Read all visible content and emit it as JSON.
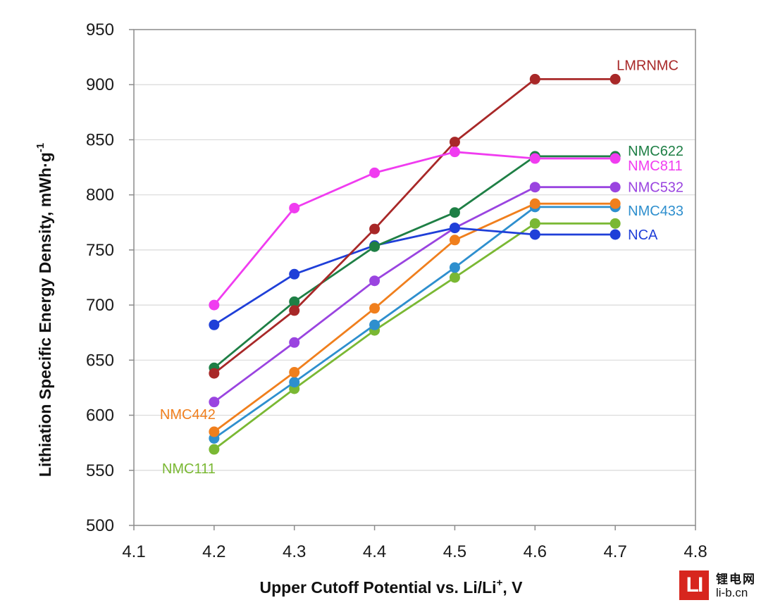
{
  "chart_data": {
    "type": "line",
    "title": "",
    "xlabel_main": "Upper Cutoff Potential vs. Li/Li",
    "xlabel_sup": "+",
    "xlabel_end": ", V",
    "ylabel_main": "Lithiation Specific Energy Density, mWh·g",
    "ylabel_sup": "-1",
    "xlim": [
      4.1,
      4.8
    ],
    "ylim": [
      500,
      950
    ],
    "xticks": [
      "4.1",
      "4.2",
      "4.3",
      "4.4",
      "4.5",
      "4.6",
      "4.7",
      "4.8"
    ],
    "yticks": [
      "500",
      "550",
      "600",
      "650",
      "700",
      "750",
      "800",
      "850",
      "900",
      "950"
    ],
    "grid": "horizontal",
    "x": [
      4.2,
      4.3,
      4.4,
      4.5,
      4.6,
      4.7
    ],
    "series": [
      {
        "name": "NMC111",
        "color": "#7ab833",
        "values": [
          569,
          624,
          677,
          725,
          774,
          774
        ],
        "label_pos": "left"
      },
      {
        "name": "NMC433",
        "color": "#2e8fce",
        "values": [
          579,
          630,
          682,
          734,
          789,
          789
        ],
        "label_pos": "right"
      },
      {
        "name": "NMC442",
        "color": "#f07f1d",
        "values": [
          585,
          639,
          697,
          759,
          792,
          792
        ],
        "label_pos": "left"
      },
      {
        "name": "NMC532",
        "color": "#9a44e0",
        "values": [
          612,
          666,
          722,
          770,
          807,
          807
        ],
        "label_pos": "right"
      },
      {
        "name": "NCA",
        "color": "#1f3fd8",
        "values": [
          682,
          728,
          754,
          770,
          764,
          764
        ],
        "label_pos": "right"
      },
      {
        "name": "NMC622",
        "color": "#1e7f45",
        "values": [
          643,
          703,
          753,
          784,
          835,
          835
        ],
        "label_pos": "right"
      },
      {
        "name": "LMRNMC",
        "color": "#a82828",
        "values": [
          638,
          695,
          769,
          848,
          905,
          905
        ],
        "label_pos": "top-right"
      },
      {
        "name": "NMC811",
        "color": "#f03cf0",
        "values": [
          700,
          788,
          820,
          839,
          833,
          833
        ],
        "label_pos": "right"
      }
    ]
  },
  "watermark": {
    "logo_text": "LI",
    "chinese_text": "锂电网",
    "url_text": "li-b.cn"
  }
}
